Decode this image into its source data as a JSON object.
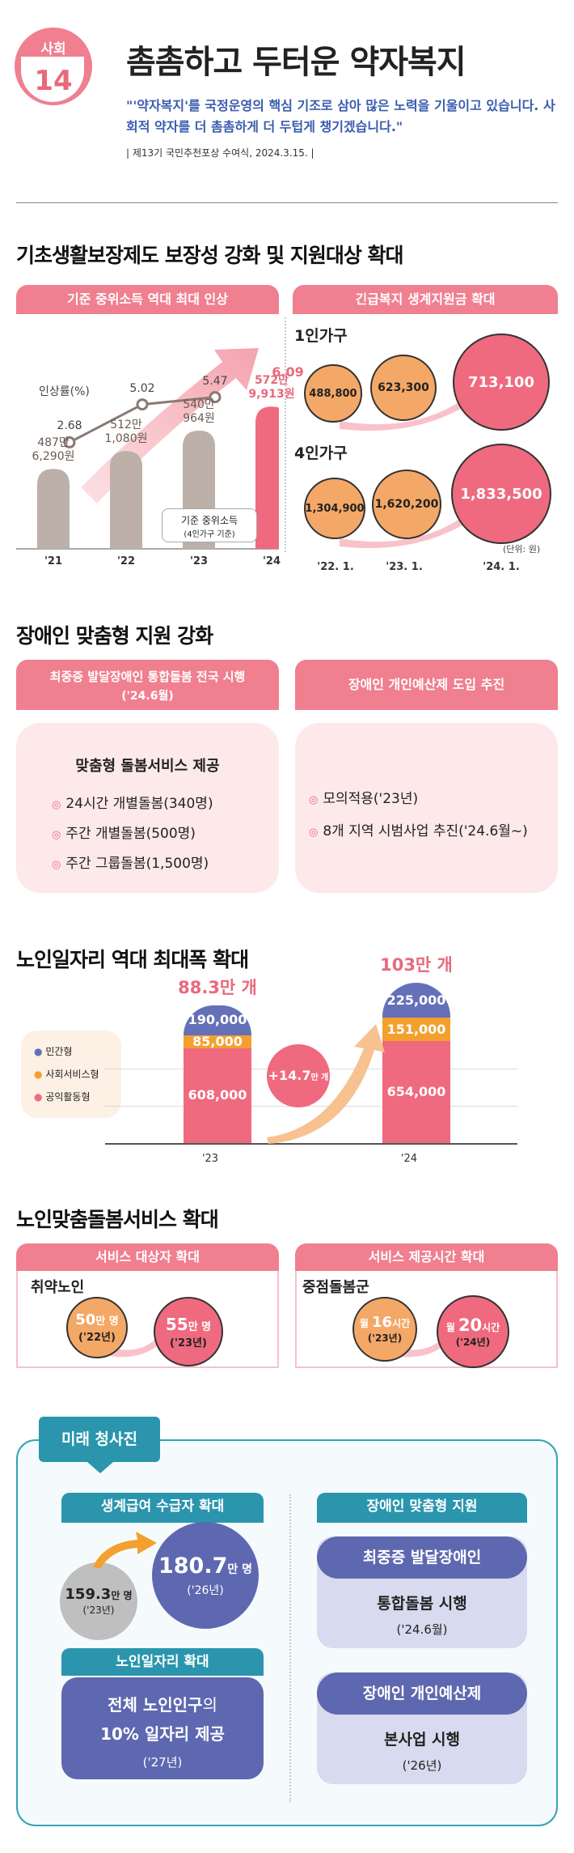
{
  "header": {
    "category": "사회",
    "number": "14",
    "title": "촘촘하고 두터운 약자복지",
    "quote": "\"'약자복지'를 국정운영의 핵심 기조로 삼아 많은 노력을 기울이고 있습니다. 사회적 약자를 더 촘촘하게 더 두텁게 챙기겠습니다.\"",
    "source": "| 제13기 국민추천포상 수여식, 2024.3.15. |"
  },
  "section1": {
    "title": "기초생활보장제도 보장성 강화 및 지원대상 확대",
    "left_header": "기준 중위소득 역대 최대 인상",
    "right_header": "긴급복지 생계지원금 확대",
    "rate_label": "인상률(%)",
    "legend_box": "기준 중위소득",
    "legend_box_sub": "(4인가구 기준)",
    "chart_data": {
      "type": "bar",
      "categories": [
        "'21",
        "'22",
        "'23",
        "'24"
      ],
      "bar_labels": [
        "487만\n6,290원",
        "512만\n1,080원",
        "540만\n964원",
        "572만\n9,913원"
      ],
      "values_won": [
        4876290,
        5121080,
        5400964,
        5729913
      ],
      "line_values": [
        2.68,
        5.02,
        5.47,
        6.09
      ],
      "line_labels": [
        "2.68",
        "5.02",
        "5.47",
        "6.09"
      ]
    },
    "emergency": {
      "one_person_label": "1인가구",
      "four_person_label": "4인가구",
      "one_person_values": [
        "488,800",
        "623,300",
        "713,100"
      ],
      "four_person_values": [
        "1,304,900",
        "1,620,200",
        "1,833,500"
      ],
      "unit": "(단위: 원)",
      "periods": [
        "'22. 1.",
        "'23. 1.",
        "'24. 1."
      ]
    }
  },
  "section2": {
    "title": "장애인 맞춤형 지원 강화",
    "left_header_line1": "최중증 발달장애인 통합돌봄 전국 시행",
    "left_header_line2": "('24.6월)",
    "right_header": "장애인 개인예산제 도입 추진",
    "left_box_title": "맞춤형 돌봄서비스 제공",
    "left_items": [
      "24시간 개별돌봄(340명)",
      "주간 개별돌봄(500명)",
      "주간 그룹돌봄(1,500명)"
    ],
    "right_items": [
      "모의적용('23년)",
      "8개 지역 시범사업 추진('24.6월~)"
    ]
  },
  "section3": {
    "title": "노인일자리 역대 최대폭 확대",
    "legend": [
      "민간형",
      "사회서비스형",
      "공익활동형"
    ],
    "increase_num": "+14.7",
    "increase_unit": "만 개",
    "chart_data": {
      "type": "bar",
      "stacked": true,
      "categories": [
        "'23",
        "'24"
      ],
      "totals": [
        "88.3만 개",
        "103만 개"
      ],
      "series": [
        {
          "name": "민간형",
          "values": [
            190000,
            225000
          ],
          "labels": [
            "190,000",
            "225,000"
          ]
        },
        {
          "name": "사회서비스형",
          "values": [
            85000,
            151000
          ],
          "labels": [
            "85,000",
            "151,000"
          ]
        },
        {
          "name": "공익활동형",
          "values": [
            608000,
            654000
          ],
          "labels": [
            "608,000",
            "654,000"
          ]
        }
      ]
    }
  },
  "section4": {
    "title": "노인맞춤돌봄서비스 확대",
    "left_header": "서비스 대상자 확대",
    "right_header": "서비스 제공시간 확대",
    "left_label": "취약노인",
    "right_label": "중점돌봄군",
    "left_from_num": "50",
    "left_from_unit": "만 명",
    "left_from_year": "('22년)",
    "left_to_num": "55",
    "left_to_unit": "만 명",
    "left_to_year": "('23년)",
    "right_from_pre": "월 ",
    "right_from_num": "16",
    "right_from_unit": "시간",
    "right_from_year": "('23년)",
    "right_to_pre": "월 ",
    "right_to_num": "20",
    "right_to_unit": "시간",
    "right_to_year": "('24년)"
  },
  "future": {
    "tag": "미래 청사진",
    "livelihood_header": "생계급여 수급자 확대",
    "from_num": "159.3",
    "from_unit": "만 명",
    "from_year": "('23년)",
    "to_num": "180.7",
    "to_unit": "만 명",
    "to_year": "('26년)",
    "jobs_header": "노인일자리 확대",
    "jobs_line1_a": "전체 노인인구",
    "jobs_line1_b": "의",
    "jobs_line2": "10% 일자리 제공",
    "jobs_year": "('27년)",
    "disabled_header": "장애인 맞춤형 지원",
    "pill1": "최중증 발달장애인",
    "pill1_text": "통합돌봄 시행",
    "pill1_year": "('24.6월)",
    "pill2": "장애인 개인예산제",
    "pill2_text": "본사업 시행",
    "pill2_year": "('26년)"
  },
  "colors": {
    "pink": "#ef6a7e",
    "orange": "#f4a867",
    "navy": "#5e68b0",
    "teal": "#2a95ad",
    "taupe": "#bdb0a8"
  }
}
